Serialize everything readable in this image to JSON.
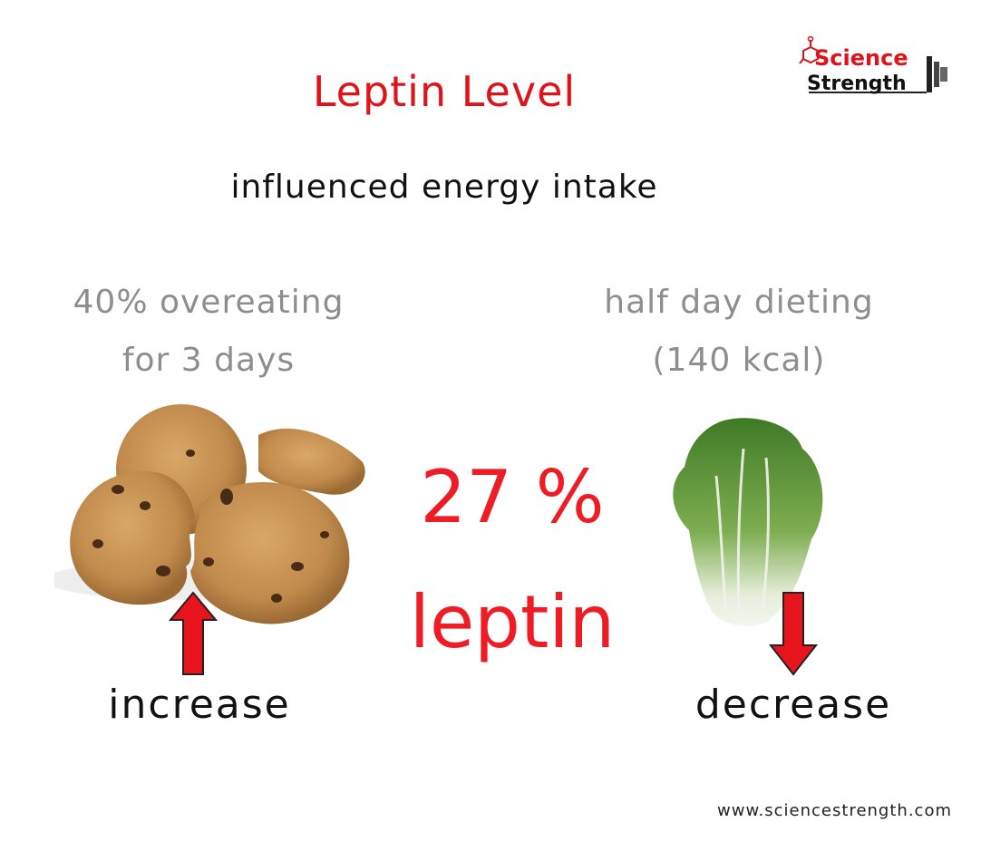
{
  "title": "Leptin Level",
  "subtitle": "influenced energy intake",
  "left": {
    "caption_line1": "40% overeating",
    "caption_line2": "for 3 days",
    "label": "increase",
    "image": "cookies"
  },
  "right": {
    "caption_line1": "half day dieting",
    "caption_line2": "(140 kcal)",
    "label": "decrease",
    "image": "napa-cabbage"
  },
  "center": {
    "percent": "27 %",
    "word": "leptin"
  },
  "logo": {
    "line1": "Science",
    "line2": "Strength"
  },
  "website": "www.sciencestrength.com",
  "colors": {
    "accent": "#ee1c24",
    "text": "#111111",
    "muted": "#8e8e8e"
  },
  "icons": {
    "up": "arrow-up-icon",
    "down": "arrow-down-icon"
  }
}
